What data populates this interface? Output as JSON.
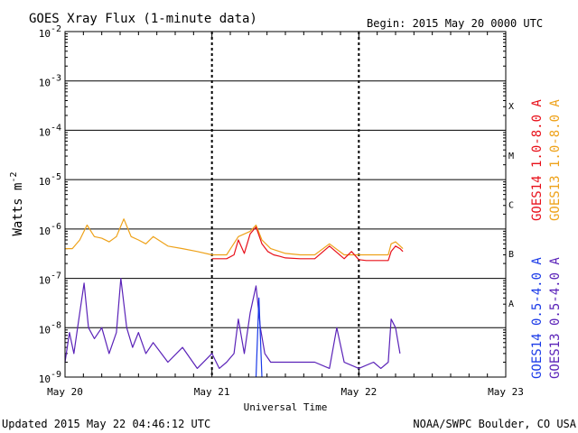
{
  "chart_data": {
    "type": "line",
    "title": "GOES Xray Flux (1-minute data)",
    "begin_label": "Begin:  2015 May 20 0000 UTC",
    "xlabel": "Universal Time",
    "ylabel": "Watts m",
    "ylabel_sup": "-2",
    "x_ticks": [
      "May 20",
      "May 21",
      "May 22",
      "May 23"
    ],
    "xlim_days": [
      0,
      3
    ],
    "y_scale": "log",
    "ylim": [
      1e-09,
      0.01
    ],
    "y_ticks": [
      {
        "base": "10",
        "exp": "-2"
      },
      {
        "base": "10",
        "exp": "-3"
      },
      {
        "base": "10",
        "exp": "-4"
      },
      {
        "base": "10",
        "exp": "-5"
      },
      {
        "base": "10",
        "exp": "-6"
      },
      {
        "base": "10",
        "exp": "-7"
      },
      {
        "base": "10",
        "exp": "-8"
      },
      {
        "base": "10",
        "exp": "-9"
      }
    ],
    "flare_classes": [
      "X",
      "M",
      "C",
      "B",
      "A"
    ],
    "grid": true,
    "colors": {
      "goes14_long": "#e8101a",
      "goes13_long": "#eea21a",
      "goes14_short": "#1a3ae8",
      "goes13_short": "#5a22b8"
    },
    "series": [
      {
        "name": "GOES14 1.0-8.0 A",
        "color": "#e8101a",
        "x": [
          1.0,
          1.1,
          1.15,
          1.18,
          1.22,
          1.26,
          1.3,
          1.34,
          1.38,
          1.42,
          1.46,
          1.5,
          1.6,
          1.7,
          1.8,
          1.9,
          1.95,
          2.0,
          2.05,
          2.1,
          2.2,
          2.22,
          2.25,
          2.28,
          2.3
        ],
        "y": [
          2.5e-07,
          2.5e-07,
          3e-07,
          6e-07,
          3.2e-07,
          8e-07,
          1.1e-06,
          5e-07,
          3.5e-07,
          3e-07,
          2.8e-07,
          2.6e-07,
          2.5e-07,
          2.5e-07,
          4.5e-07,
          2.5e-07,
          3.5e-07,
          2.4e-07,
          2.3e-07,
          2.3e-07,
          2.3e-07,
          3.5e-07,
          4.5e-07,
          4e-07,
          3.5e-07
        ]
      },
      {
        "name": "GOES13 1.0-8.0 A",
        "color": "#eea21a",
        "x": [
          0.0,
          0.05,
          0.1,
          0.15,
          0.2,
          0.25,
          0.3,
          0.35,
          0.4,
          0.45,
          0.5,
          0.55,
          0.6,
          0.7,
          0.8,
          0.9,
          1.0,
          1.1,
          1.18,
          1.26,
          1.3,
          1.34,
          1.4,
          1.5,
          1.6,
          1.7,
          1.8,
          1.9,
          2.0,
          2.1,
          2.2,
          2.22,
          2.25,
          2.3
        ],
        "y": [
          4e-07,
          4e-07,
          6e-07,
          1.2e-06,
          7e-07,
          6.5e-07,
          5.5e-07,
          7e-07,
          1.6e-06,
          7e-07,
          6e-07,
          5e-07,
          7e-07,
          4.5e-07,
          4e-07,
          3.5e-07,
          3e-07,
          3e-07,
          7e-07,
          9e-07,
          1.2e-06,
          6e-07,
          4e-07,
          3.2e-07,
          3e-07,
          3e-07,
          5e-07,
          3e-07,
          3e-07,
          3e-07,
          3e-07,
          5e-07,
          5.5e-07,
          4e-07
        ]
      },
      {
        "name": "GOES14 0.5-4.0 A",
        "color": "#1a3ae8",
        "x": [
          1.3,
          1.32,
          1.34
        ],
        "y": [
          1e-09,
          4e-08,
          1e-09
        ]
      },
      {
        "name": "GOES13 0.5-4.0 A",
        "color": "#5a22b8",
        "x": [
          0.0,
          0.03,
          0.06,
          0.1,
          0.13,
          0.16,
          0.2,
          0.25,
          0.3,
          0.35,
          0.38,
          0.42,
          0.46,
          0.5,
          0.55,
          0.6,
          0.7,
          0.8,
          0.9,
          1.0,
          1.05,
          1.1,
          1.15,
          1.18,
          1.22,
          1.26,
          1.3,
          1.33,
          1.36,
          1.4,
          1.5,
          1.6,
          1.7,
          1.8,
          1.85,
          1.9,
          2.0,
          2.1,
          2.15,
          2.2,
          2.22,
          2.25,
          2.28
        ],
        "y": [
          2e-09,
          8e-09,
          3e-09,
          2e-08,
          8e-08,
          1e-08,
          6e-09,
          1e-08,
          3e-09,
          8e-09,
          1e-07,
          1e-08,
          4e-09,
          8e-09,
          3e-09,
          5e-09,
          2e-09,
          4e-09,
          1.5e-09,
          3e-09,
          1.5e-09,
          2e-09,
          3e-09,
          1.5e-08,
          3e-09,
          2e-08,
          7e-08,
          1e-08,
          3e-09,
          2e-09,
          2e-09,
          2e-09,
          2e-09,
          1.5e-09,
          1e-08,
          2e-09,
          1.5e-09,
          2e-09,
          1.5e-09,
          2e-09,
          1.5e-08,
          1e-08,
          3e-09
        ]
      }
    ]
  },
  "footer": {
    "updated": "Updated 2015 May 22 04:46:12 UTC",
    "credit": "NOAA/SWPC Boulder, CO USA"
  }
}
